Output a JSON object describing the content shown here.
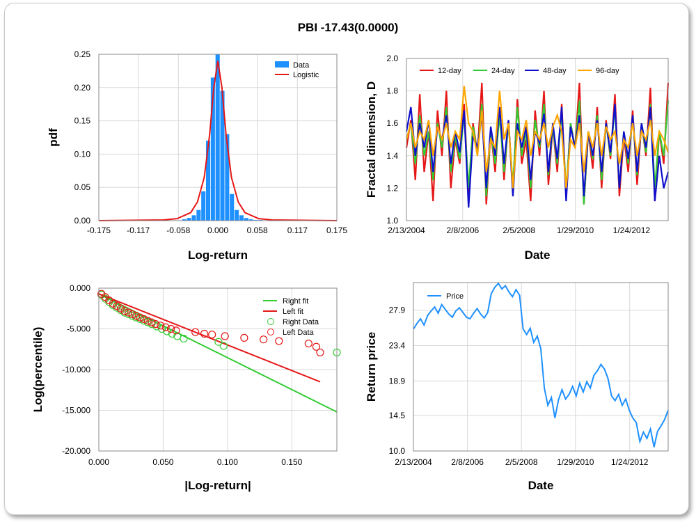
{
  "title": "PBI -17.43(0.0000)",
  "colors": {
    "data_blue": "#1e90ff",
    "red": "#e61717",
    "green": "#33cc33",
    "navy": "#0f0fcc",
    "orange": "#ffa500",
    "grid": "#d8d8d8"
  },
  "chart_data": [
    {
      "type": "bar",
      "id": "histogram",
      "xlabel": "Log-return",
      "ylabel": "pdf",
      "xlim": [
        -0.175,
        0.175
      ],
      "ylim": [
        0,
        0.25
      ],
      "xticks": [
        "-0.175",
        "-0.117",
        "-0.058",
        "0.000",
        "0.058",
        "0.117",
        "0.175"
      ],
      "yticks": [
        "0.00",
        "0.05",
        "0.10",
        "0.15",
        "0.20",
        "0.25"
      ],
      "legend": [
        "Data",
        "Logistic"
      ],
      "legend_position": "top-right",
      "bin_centers": [
        -0.049,
        -0.042,
        -0.035,
        -0.028,
        -0.021,
        -0.014,
        -0.007,
        0.0,
        0.007,
        0.014,
        0.021,
        0.028,
        0.035,
        0.042,
        0.049,
        0.056,
        0.063
      ],
      "values": [
        0.002,
        0.004,
        0.008,
        0.016,
        0.044,
        0.12,
        0.215,
        0.25,
        0.195,
        0.13,
        0.04,
        0.016,
        0.008,
        0.004,
        0.002,
        0.001,
        0.001
      ],
      "fit_x": [
        -0.175,
        -0.08,
        -0.06,
        -0.04,
        -0.03,
        -0.02,
        -0.012,
        -0.006,
        0.0,
        0.006,
        0.012,
        0.02,
        0.03,
        0.04,
        0.06,
        0.08,
        0.175
      ],
      "fit_y": [
        0.0,
        0.001,
        0.003,
        0.012,
        0.028,
        0.065,
        0.13,
        0.2,
        0.24,
        0.2,
        0.13,
        0.065,
        0.028,
        0.012,
        0.003,
        0.001,
        0.0
      ]
    },
    {
      "type": "line",
      "id": "fractal",
      "xlabel": "Date",
      "ylabel": "Fractal dimension, D",
      "ylim": [
        1.0,
        2.0
      ],
      "xticks": [
        "2/13/2004",
        "2/8/2006",
        "2/5/2008",
        "1/29/2010",
        "1/24/2012"
      ],
      "yticks": [
        "1.0",
        "1.2",
        "1.4",
        "1.6",
        "1.8",
        "2.0"
      ],
      "legend_position": "top",
      "series": [
        {
          "name": "12-day",
          "color": "#e61717",
          "values": [
            1.45,
            1.62,
            1.25,
            1.78,
            1.3,
            1.55,
            1.12,
            1.68,
            1.4,
            1.8,
            1.2,
            1.5,
            1.35,
            1.72,
            1.15,
            1.6,
            1.42,
            1.85,
            1.1,
            1.55,
            1.3,
            1.7,
            1.25,
            1.62,
            1.18,
            1.75,
            1.35,
            1.5,
            1.12,
            1.68,
            1.4,
            1.8,
            1.22,
            1.58,
            1.3,
            1.72,
            1.15,
            1.6,
            1.45,
            1.85,
            1.1,
            1.55,
            1.32,
            1.7,
            1.2,
            1.62,
            1.38,
            1.78,
            1.15,
            1.52,
            1.3,
            1.68,
            1.22,
            1.6,
            1.4,
            1.82,
            1.12,
            1.55,
            1.35,
            1.85
          ]
        },
        {
          "name": "24-day",
          "color": "#33cc33",
          "values": [
            1.5,
            1.6,
            1.35,
            1.65,
            1.4,
            1.55,
            1.25,
            1.6,
            1.45,
            1.7,
            1.3,
            1.52,
            1.38,
            1.66,
            1.2,
            1.58,
            1.42,
            1.72,
            1.15,
            1.55,
            1.35,
            1.65,
            1.3,
            1.6,
            1.22,
            1.7,
            1.4,
            1.55,
            1.2,
            1.62,
            1.45,
            1.72,
            1.28,
            1.58,
            1.35,
            1.66,
            1.18,
            1.6,
            1.45,
            1.74,
            1.1,
            1.55,
            1.38,
            1.65,
            1.25,
            1.6,
            1.4,
            1.7,
            1.2,
            1.55,
            1.35,
            1.65,
            1.28,
            1.6,
            1.42,
            1.72,
            1.2,
            1.55,
            1.4,
            1.74
          ]
        },
        {
          "name": "48-day",
          "color": "#0f0fcc",
          "values": [
            1.55,
            1.7,
            1.4,
            1.6,
            1.45,
            1.62,
            1.3,
            1.58,
            1.5,
            1.65,
            1.35,
            1.55,
            1.42,
            1.68,
            1.08,
            1.52,
            1.45,
            1.65,
            1.2,
            1.58,
            1.4,
            1.7,
            1.35,
            1.62,
            1.15,
            1.6,
            1.45,
            1.58,
            1.25,
            1.55,
            1.48,
            1.66,
            1.3,
            1.6,
            1.38,
            1.7,
            1.12,
            1.58,
            1.45,
            1.65,
            1.15,
            1.55,
            1.4,
            1.62,
            1.3,
            1.6,
            1.42,
            1.72,
            1.2,
            1.55,
            1.38,
            1.65,
            1.3,
            1.6,
            1.45,
            1.7,
            1.12,
            1.4,
            1.2,
            1.3
          ]
        },
        {
          "name": "96-day",
          "color": "#ffa500",
          "values": [
            1.5,
            1.6,
            1.45,
            1.55,
            1.5,
            1.62,
            1.4,
            1.58,
            1.5,
            1.6,
            1.45,
            1.55,
            1.5,
            1.83,
            1.6,
            1.55,
            1.4,
            1.68,
            1.3,
            1.5,
            1.45,
            1.8,
            1.5,
            1.6,
            1.2,
            1.55,
            1.5,
            1.62,
            1.4,
            1.55,
            1.5,
            1.6,
            1.45,
            1.58,
            1.65,
            1.55,
            1.2,
            1.5,
            1.45,
            1.6,
            1.3,
            1.55,
            1.45,
            1.6,
            1.4,
            1.58,
            1.5,
            1.55,
            1.35,
            1.5,
            1.45,
            1.6,
            1.4,
            1.55,
            1.5,
            1.62,
            1.4,
            1.55,
            1.5,
            1.42
          ]
        }
      ]
    },
    {
      "type": "scatter",
      "id": "tails",
      "xlabel": "|Log-return|",
      "ylabel": "Log(percentile)",
      "xlim": [
        0,
        0.185
      ],
      "ylim": [
        -20,
        0
      ],
      "xticks": [
        "0.000",
        "0.050",
        "0.100",
        "0.150"
      ],
      "yticks": [
        "0.000",
        "-5.000",
        "-10.000",
        "-15.000",
        "-20.000"
      ],
      "legend": [
        "Right fit",
        "Left fit",
        "Right Data",
        "Left Data"
      ],
      "legend_position": "top-right",
      "right_fit": [
        [
          0,
          -0.7
        ],
        [
          0.185,
          -15.2
        ]
      ],
      "left_fit": [
        [
          0,
          -0.7
        ],
        [
          0.172,
          -11.5
        ]
      ],
      "right_data": [
        [
          0.002,
          -0.8
        ],
        [
          0.005,
          -1.3
        ],
        [
          0.008,
          -1.7
        ],
        [
          0.011,
          -2.1
        ],
        [
          0.014,
          -2.4
        ],
        [
          0.017,
          -2.7
        ],
        [
          0.02,
          -3.0
        ],
        [
          0.023,
          -3.2
        ],
        [
          0.026,
          -3.4
        ],
        [
          0.029,
          -3.6
        ],
        [
          0.032,
          -3.8
        ],
        [
          0.035,
          -4.0
        ],
        [
          0.038,
          -4.2
        ],
        [
          0.041,
          -4.4
        ],
        [
          0.045,
          -4.7
        ],
        [
          0.049,
          -5.0
        ],
        [
          0.053,
          -5.3
        ],
        [
          0.057,
          -5.6
        ],
        [
          0.061,
          -5.9
        ],
        [
          0.066,
          -6.2
        ],
        [
          0.093,
          -6.6
        ],
        [
          0.097,
          -7.1
        ],
        [
          0.185,
          -7.9
        ]
      ],
      "left_data": [
        [
          0.002,
          -0.7
        ],
        [
          0.005,
          -1.1
        ],
        [
          0.008,
          -1.5
        ],
        [
          0.011,
          -1.9
        ],
        [
          0.014,
          -2.2
        ],
        [
          0.017,
          -2.5
        ],
        [
          0.02,
          -2.8
        ],
        [
          0.023,
          -3.0
        ],
        [
          0.026,
          -3.2
        ],
        [
          0.029,
          -3.4
        ],
        [
          0.032,
          -3.6
        ],
        [
          0.035,
          -3.8
        ],
        [
          0.038,
          -4.0
        ],
        [
          0.041,
          -4.2
        ],
        [
          0.044,
          -4.4
        ],
        [
          0.048,
          -4.6
        ],
        [
          0.052,
          -4.8
        ],
        [
          0.056,
          -5.0
        ],
        [
          0.06,
          -5.2
        ],
        [
          0.075,
          -5.4
        ],
        [
          0.082,
          -5.6
        ],
        [
          0.088,
          -5.7
        ],
        [
          0.098,
          -5.9
        ],
        [
          0.113,
          -6.1
        ],
        [
          0.128,
          -6.3
        ],
        [
          0.14,
          -6.5
        ],
        [
          0.163,
          -6.8
        ],
        [
          0.169,
          -7.2
        ],
        [
          0.172,
          -7.9
        ]
      ]
    },
    {
      "type": "line",
      "id": "price",
      "xlabel": "Date",
      "ylabel": "Return price",
      "ylim": [
        10.0,
        31.4
      ],
      "xticks": [
        "2/13/2004",
        "2/8/2006",
        "2/5/2008",
        "1/29/2010",
        "1/24/2012"
      ],
      "yticks": [
        "10.0",
        "14.5",
        "18.9",
        "23.4",
        "27.9"
      ],
      "legend": [
        "Price"
      ],
      "legend_position": "top-left",
      "values": [
        25.5,
        26.2,
        26.8,
        26.0,
        27.2,
        27.8,
        28.3,
        27.5,
        28.6,
        28.0,
        27.4,
        27.0,
        27.8,
        28.2,
        27.6,
        27.0,
        26.8,
        27.5,
        28.1,
        27.4,
        26.9,
        27.6,
        30.0,
        30.8,
        31.3,
        30.6,
        31.0,
        30.2,
        29.6,
        30.5,
        29.8,
        25.5,
        24.8,
        25.6,
        23.8,
        24.6,
        23.0,
        18.0,
        15.8,
        16.8,
        14.2,
        16.5,
        17.8,
        16.6,
        17.2,
        18.2,
        17.0,
        18.6,
        17.5,
        18.8,
        18.0,
        19.6,
        20.2,
        21.0,
        20.4,
        19.2,
        17.0,
        16.4,
        17.2,
        15.8,
        16.6,
        15.2,
        14.2,
        13.6,
        11.2,
        12.4,
        11.6,
        12.8,
        10.5,
        12.5,
        13.2,
        14.0,
        15.2
      ]
    }
  ]
}
